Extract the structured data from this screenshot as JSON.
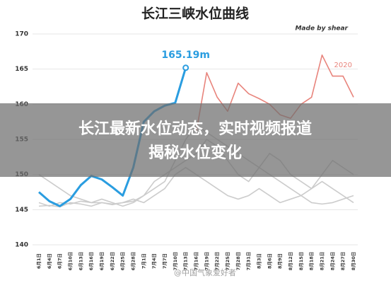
{
  "chart_data": {
    "type": "line",
    "title": "长江三峡水位曲线",
    "credit": "Made by shear",
    "categories": [
      "6月1日",
      "6月4日",
      "6月7日",
      "6月10日",
      "6月13日",
      "6月16日",
      "6月19日",
      "6月22日",
      "6月25日",
      "6月28日",
      "7月1日",
      "7月4日",
      "7月7日",
      "7月10日",
      "7月13日",
      "7月16日",
      "7月19日",
      "7月22日",
      "7月25日",
      "7月28日",
      "7月31日",
      "8月3日",
      "8月6日",
      "8月9日",
      "8月12日",
      "8月15日",
      "8月18日",
      "8月21日",
      "8月24日",
      "8月27日",
      "8月30日"
    ],
    "series": [
      {
        "color": "#cccccc",
        "values": [
          146,
          145.5,
          146,
          145.8,
          146.2,
          146,
          146.5,
          146,
          145.5,
          146,
          147,
          149,
          150,
          151,
          152,
          153,
          155,
          154,
          152,
          150,
          149,
          151,
          153,
          152,
          150,
          149,
          148,
          150,
          152,
          151,
          150
        ]
      },
      {
        "color": "#cccccc",
        "values": [
          145.5,
          145.6,
          145.4,
          146,
          145.8,
          145.5,
          146,
          145.7,
          146,
          146.5,
          146,
          147,
          148,
          150,
          151,
          150,
          149,
          148,
          147,
          146.5,
          147,
          148,
          147,
          146,
          146.5,
          147,
          146,
          145.8,
          146,
          146.5,
          147
        ]
      },
      {
        "color": "#cccccc",
        "values": [
          150,
          149,
          148,
          147,
          146.5,
          146,
          146,
          145.8,
          146,
          146.2,
          147,
          148,
          149,
          152,
          155,
          157,
          156,
          155,
          154,
          153,
          152,
          151,
          150,
          149,
          148,
          147,
          148,
          149,
          148,
          147,
          146
        ]
      },
      {
        "name": "2020",
        "color": "#e8847c",
        "values": [
          null,
          null,
          null,
          null,
          null,
          null,
          null,
          null,
          null,
          null,
          null,
          null,
          null,
          null,
          null,
          156,
          164.5,
          161,
          159,
          163,
          161.5,
          160.8,
          160,
          158.5,
          158,
          160,
          161,
          167,
          164,
          164,
          161
        ]
      },
      {
        "color": "#2a9de0",
        "values": [
          147.5,
          146.2,
          145.5,
          146.5,
          148.5,
          149.8,
          149.3,
          148.2,
          147,
          151,
          157.5,
          159,
          159.8,
          160.2,
          165.19,
          null,
          null,
          null,
          null,
          null,
          null,
          null,
          null,
          null,
          null,
          null,
          null,
          null,
          null,
          null,
          null
        ],
        "value_labels": [
          null,
          null,
          null,
          null,
          null,
          null,
          null,
          null,
          null,
          null,
          null,
          null,
          null,
          null,
          "165.19m",
          null,
          null,
          null,
          null,
          null,
          null,
          null,
          null,
          null,
          null,
          null,
          null,
          null,
          null,
          null,
          null
        ]
      }
    ],
    "ylim": [
      140,
      170
    ],
    "yticks": [
      140,
      145,
      150,
      155,
      160,
      165,
      170
    ],
    "grid": true
  },
  "overlay": {
    "lines": [
      "长江最新水位动态，实时视频报道",
      "揭秘水位变化"
    ]
  },
  "watermark": "@中国气象爱好者"
}
